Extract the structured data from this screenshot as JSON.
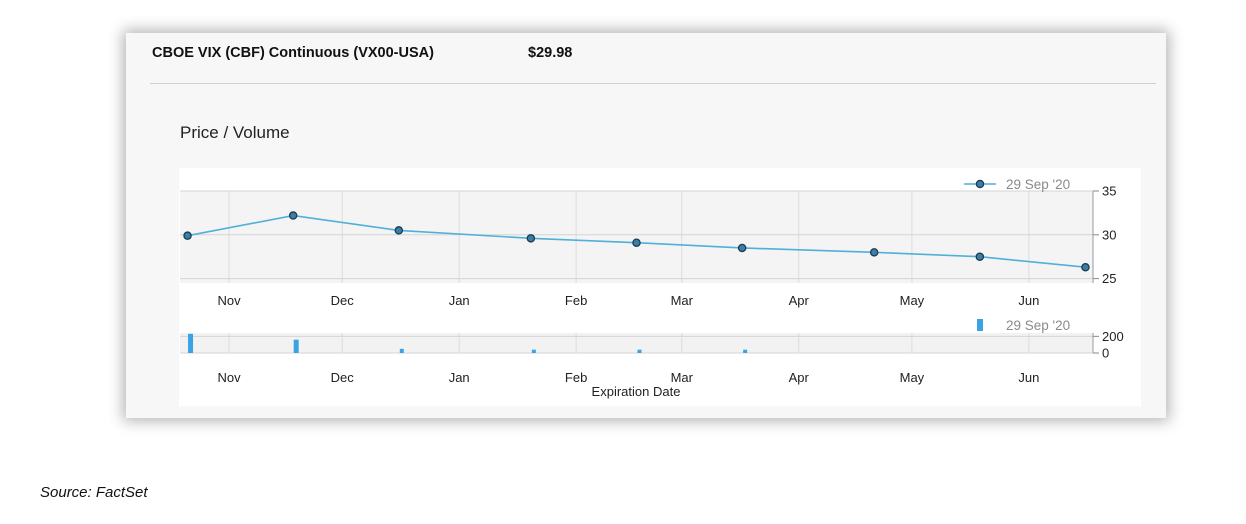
{
  "header": {
    "instrument": "CBOE VIX (CBF) Continuous (VX00-USA)",
    "price": "$29.98"
  },
  "chart_title": "Price / Volume",
  "source": "Source: FactSet",
  "colors": {
    "line": "#4fb0d8",
    "bar": "#3aa3e6",
    "marker_fill": "#3a7fa6",
    "marker_stroke": "#1c3a52"
  },
  "chart_data": [
    {
      "type": "line",
      "title": "Price / Volume",
      "xlabel": "",
      "ylabel": "",
      "x_ticks": [
        "Nov",
        "Dec",
        "Jan",
        "Feb",
        "Mar",
        "Apr",
        "May",
        "Jun"
      ],
      "x": [
        "2020-10-21",
        "2020-11-18",
        "2020-12-16",
        "2021-01-20",
        "2021-02-17",
        "2021-03-17",
        "2021-04-21",
        "2021-05-19",
        "2021-06-16"
      ],
      "xlim": [
        "2020-10-19",
        "2021-06-18"
      ],
      "series": [
        {
          "name": "29 Sep '20",
          "values": [
            29.9,
            32.2,
            30.5,
            29.6,
            29.1,
            28.5,
            28.0,
            27.5,
            26.3
          ]
        }
      ],
      "y_ticks": [
        25,
        30,
        35
      ],
      "ylim": [
        24.5,
        35
      ],
      "grid": true,
      "legend": "top-right",
      "axis_side": "right"
    },
    {
      "type": "bar",
      "title": "",
      "xlabel": "Expiration Date",
      "ylabel": "",
      "x_ticks": [
        "Nov",
        "Dec",
        "Jan",
        "Feb",
        "Mar",
        "Apr",
        "May",
        "Jun"
      ],
      "x": [
        "2020-10-21",
        "2020-11-18",
        "2020-12-16",
        "2021-01-20",
        "2021-02-17",
        "2021-03-17",
        "2021-04-21",
        "2021-05-19",
        "2021-06-16"
      ],
      "xlim": [
        "2020-10-19",
        "2021-06-18"
      ],
      "series": [
        {
          "name": "29 Sep '20",
          "values": [
            230,
            160,
            50,
            40,
            40,
            40,
            0,
            0,
            0
          ]
        }
      ],
      "y_ticks": [
        0,
        200
      ],
      "ylim": [
        0,
        240
      ],
      "grid": true,
      "legend": "top-right",
      "axis_side": "right"
    }
  ]
}
